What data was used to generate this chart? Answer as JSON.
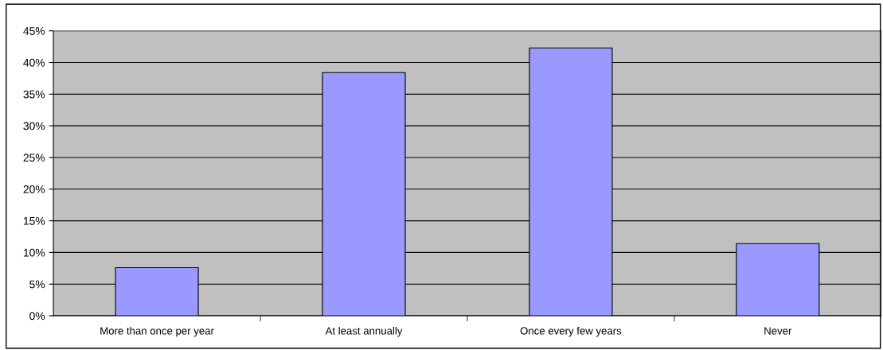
{
  "chart_data": {
    "type": "bar",
    "categories": [
      "More than once per year",
      "At least annually",
      "Once every few years",
      "Never"
    ],
    "values": [
      7.6,
      38.4,
      42.3,
      11.4
    ],
    "color": "#9999ff",
    "ylim": [
      0,
      45
    ],
    "yticks": [
      {
        "value": 0,
        "label": "0%"
      },
      {
        "value": 5,
        "label": "5%"
      },
      {
        "value": 10,
        "label": "10%"
      },
      {
        "value": 15,
        "label": "15%"
      },
      {
        "value": 20,
        "label": "20%"
      },
      {
        "value": 25,
        "label": "25%"
      },
      {
        "value": 30,
        "label": "30%"
      },
      {
        "value": 35,
        "label": "35%"
      },
      {
        "value": 40,
        "label": "40%"
      },
      {
        "value": 45,
        "label": "45%"
      }
    ],
    "grid": "y",
    "legend": false
  }
}
